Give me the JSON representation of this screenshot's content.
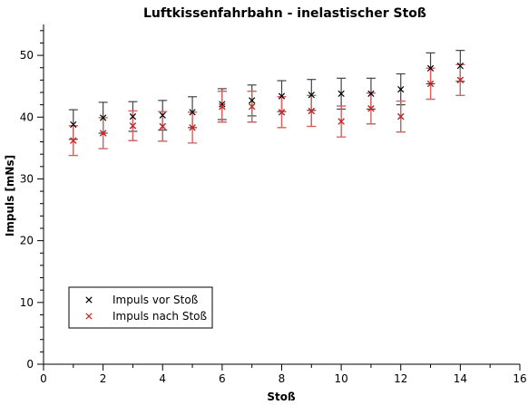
{
  "chart_data": {
    "type": "scatter",
    "title": "Luftkissenfahrbahn - inelastischer Stoß",
    "xlabel": "Stoß",
    "ylabel": "Impuls [mNs]",
    "xlim": [
      0,
      16
    ],
    "ylim": [
      0,
      55
    ],
    "x_ticks": [
      0,
      2,
      4,
      6,
      8,
      10,
      12,
      14,
      16
    ],
    "y_ticks": [
      0,
      10,
      20,
      30,
      40,
      50
    ],
    "x_tick_labels": [
      "0",
      "2",
      "4",
      "6",
      "8",
      "10",
      "12",
      "14",
      "16"
    ],
    "y_tick_labels": [
      "0",
      "10",
      "20",
      "30",
      "40",
      "50"
    ],
    "grid": false,
    "legend_position": "bottom-left",
    "marker": "x",
    "series": [
      {
        "name": "Impuls vor Stoß",
        "color": "#000000",
        "errorbar_color": "#444444",
        "points": [
          {
            "x": 1,
            "y": 38.8,
            "err": 2.4
          },
          {
            "x": 1,
            "y": 36.2,
            "err": 2.4
          },
          {
            "x": 2,
            "y": 39.9,
            "err": 2.5
          },
          {
            "x": 2,
            "y": 37.4,
            "err": 2.5
          },
          {
            "x": 3,
            "y": 40.1,
            "err": 2.4
          },
          {
            "x": 3,
            "y": 38.6,
            "err": 2.4
          },
          {
            "x": 4,
            "y": 40.3,
            "err": 2.4
          },
          {
            "x": 4,
            "y": 38.5,
            "err": 2.4
          },
          {
            "x": 5,
            "y": 40.8,
            "err": 2.5
          },
          {
            "x": 5,
            "y": 38.3,
            "err": 2.5
          },
          {
            "x": 6,
            "y": 42.1,
            "err": 2.5
          },
          {
            "x": 6,
            "y": 41.7,
            "err": 2.5
          },
          {
            "x": 7,
            "y": 42.7,
            "err": 2.5
          },
          {
            "x": 7,
            "y": 41.7,
            "err": 2.5
          },
          {
            "x": 8,
            "y": 43.4,
            "err": 2.5
          },
          {
            "x": 8,
            "y": 40.8,
            "err": 2.5
          },
          {
            "x": 9,
            "y": 43.6,
            "err": 2.5
          },
          {
            "x": 9,
            "y": 41.0,
            "err": 2.5
          },
          {
            "x": 10,
            "y": 43.8,
            "err": 2.5
          },
          {
            "x": 10,
            "y": 39.3,
            "err": 2.5
          },
          {
            "x": 11,
            "y": 43.8,
            "err": 2.5
          },
          {
            "x": 11,
            "y": 41.4,
            "err": 2.5
          },
          {
            "x": 12,
            "y": 44.5,
            "err": 2.5
          },
          {
            "x": 12,
            "y": 40.1,
            "err": 2.5
          },
          {
            "x": 13,
            "y": 47.9,
            "err": 2.5
          },
          {
            "x": 13,
            "y": 45.4,
            "err": 2.5
          },
          {
            "x": 14,
            "y": 48.3,
            "err": 2.5
          },
          {
            "x": 14,
            "y": 46.0,
            "err": 2.5
          }
        ]
      },
      {
        "name": "Impuls nach Stoß",
        "color": "#e02020",
        "errorbar_color": "#e06060",
        "points": [
          {
            "x": 1,
            "y": 36.2,
            "err": 2.4
          },
          {
            "x": 2,
            "y": 37.4,
            "err": 2.5
          },
          {
            "x": 3,
            "y": 38.6,
            "err": 2.4
          },
          {
            "x": 4,
            "y": 38.5,
            "err": 2.4
          },
          {
            "x": 5,
            "y": 38.3,
            "err": 2.5
          },
          {
            "x": 6,
            "y": 41.7,
            "err": 2.5
          },
          {
            "x": 7,
            "y": 41.7,
            "err": 2.5
          },
          {
            "x": 8,
            "y": 40.8,
            "err": 2.5
          },
          {
            "x": 9,
            "y": 41.0,
            "err": 2.5
          },
          {
            "x": 10,
            "y": 39.3,
            "err": 2.5
          },
          {
            "x": 11,
            "y": 41.4,
            "err": 2.5
          },
          {
            "x": 12,
            "y": 40.1,
            "err": 2.5
          },
          {
            "x": 13,
            "y": 45.4,
            "err": 2.5
          },
          {
            "x": 14,
            "y": 46.0,
            "err": 2.5
          }
        ]
      }
    ]
  }
}
